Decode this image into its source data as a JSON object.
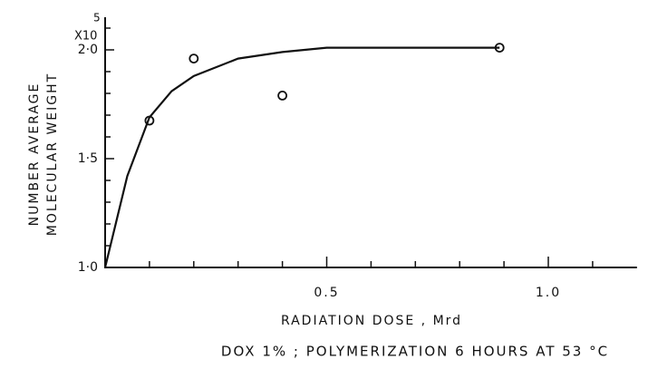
{
  "chart_data": {
    "type": "scatter",
    "y_axis_label": [
      "NUMBER AVERAGE",
      "MOLECULAR WEIGHT"
    ],
    "y_multiplier": "X10",
    "y_multiplier_exponent": "5",
    "x_axis_label": "RADIATION DOSE , Mrd",
    "caption": "DOX 1% ; POLYMERIZATION  6 HOURS AT 53 °C",
    "xlim": [
      0,
      1.2
    ],
    "ylim": [
      1.0,
      2.15
    ],
    "xticks": [
      0.5,
      {
        "value": 1,
        "label": "1.0"
      }
    ],
    "yticks": [
      {
        "value": 1,
        "label": "1·0"
      },
      {
        "value": 1.5,
        "label": "1·5"
      },
      {
        "value": 2,
        "label": "2·0"
      }
    ],
    "x_minor_ticks": [
      0.1,
      0.2,
      0.3,
      0.4,
      0.6,
      0.7,
      0.8,
      0.9,
      1.1
    ],
    "y_minor_ticks": [
      1.1,
      1.2,
      1.3,
      1.4,
      1.6,
      1.7,
      1.8,
      1.9,
      2.1
    ],
    "points": {
      "x": [
        0.1,
        0.2,
        0.4,
        0.89
      ],
      "y": [
        1.675,
        1.96,
        1.79,
        2.01
      ],
      "color": "#111111"
    },
    "curve": {
      "x": [
        0,
        0.05,
        0.1,
        0.15,
        0.2,
        0.3,
        0.4,
        0.5,
        0.6,
        0.89
      ],
      "y": [
        1.0,
        1.42,
        1.69,
        1.81,
        1.88,
        1.96,
        1.99,
        2.01,
        2.01,
        2.01
      ],
      "color": "#111111"
    }
  }
}
